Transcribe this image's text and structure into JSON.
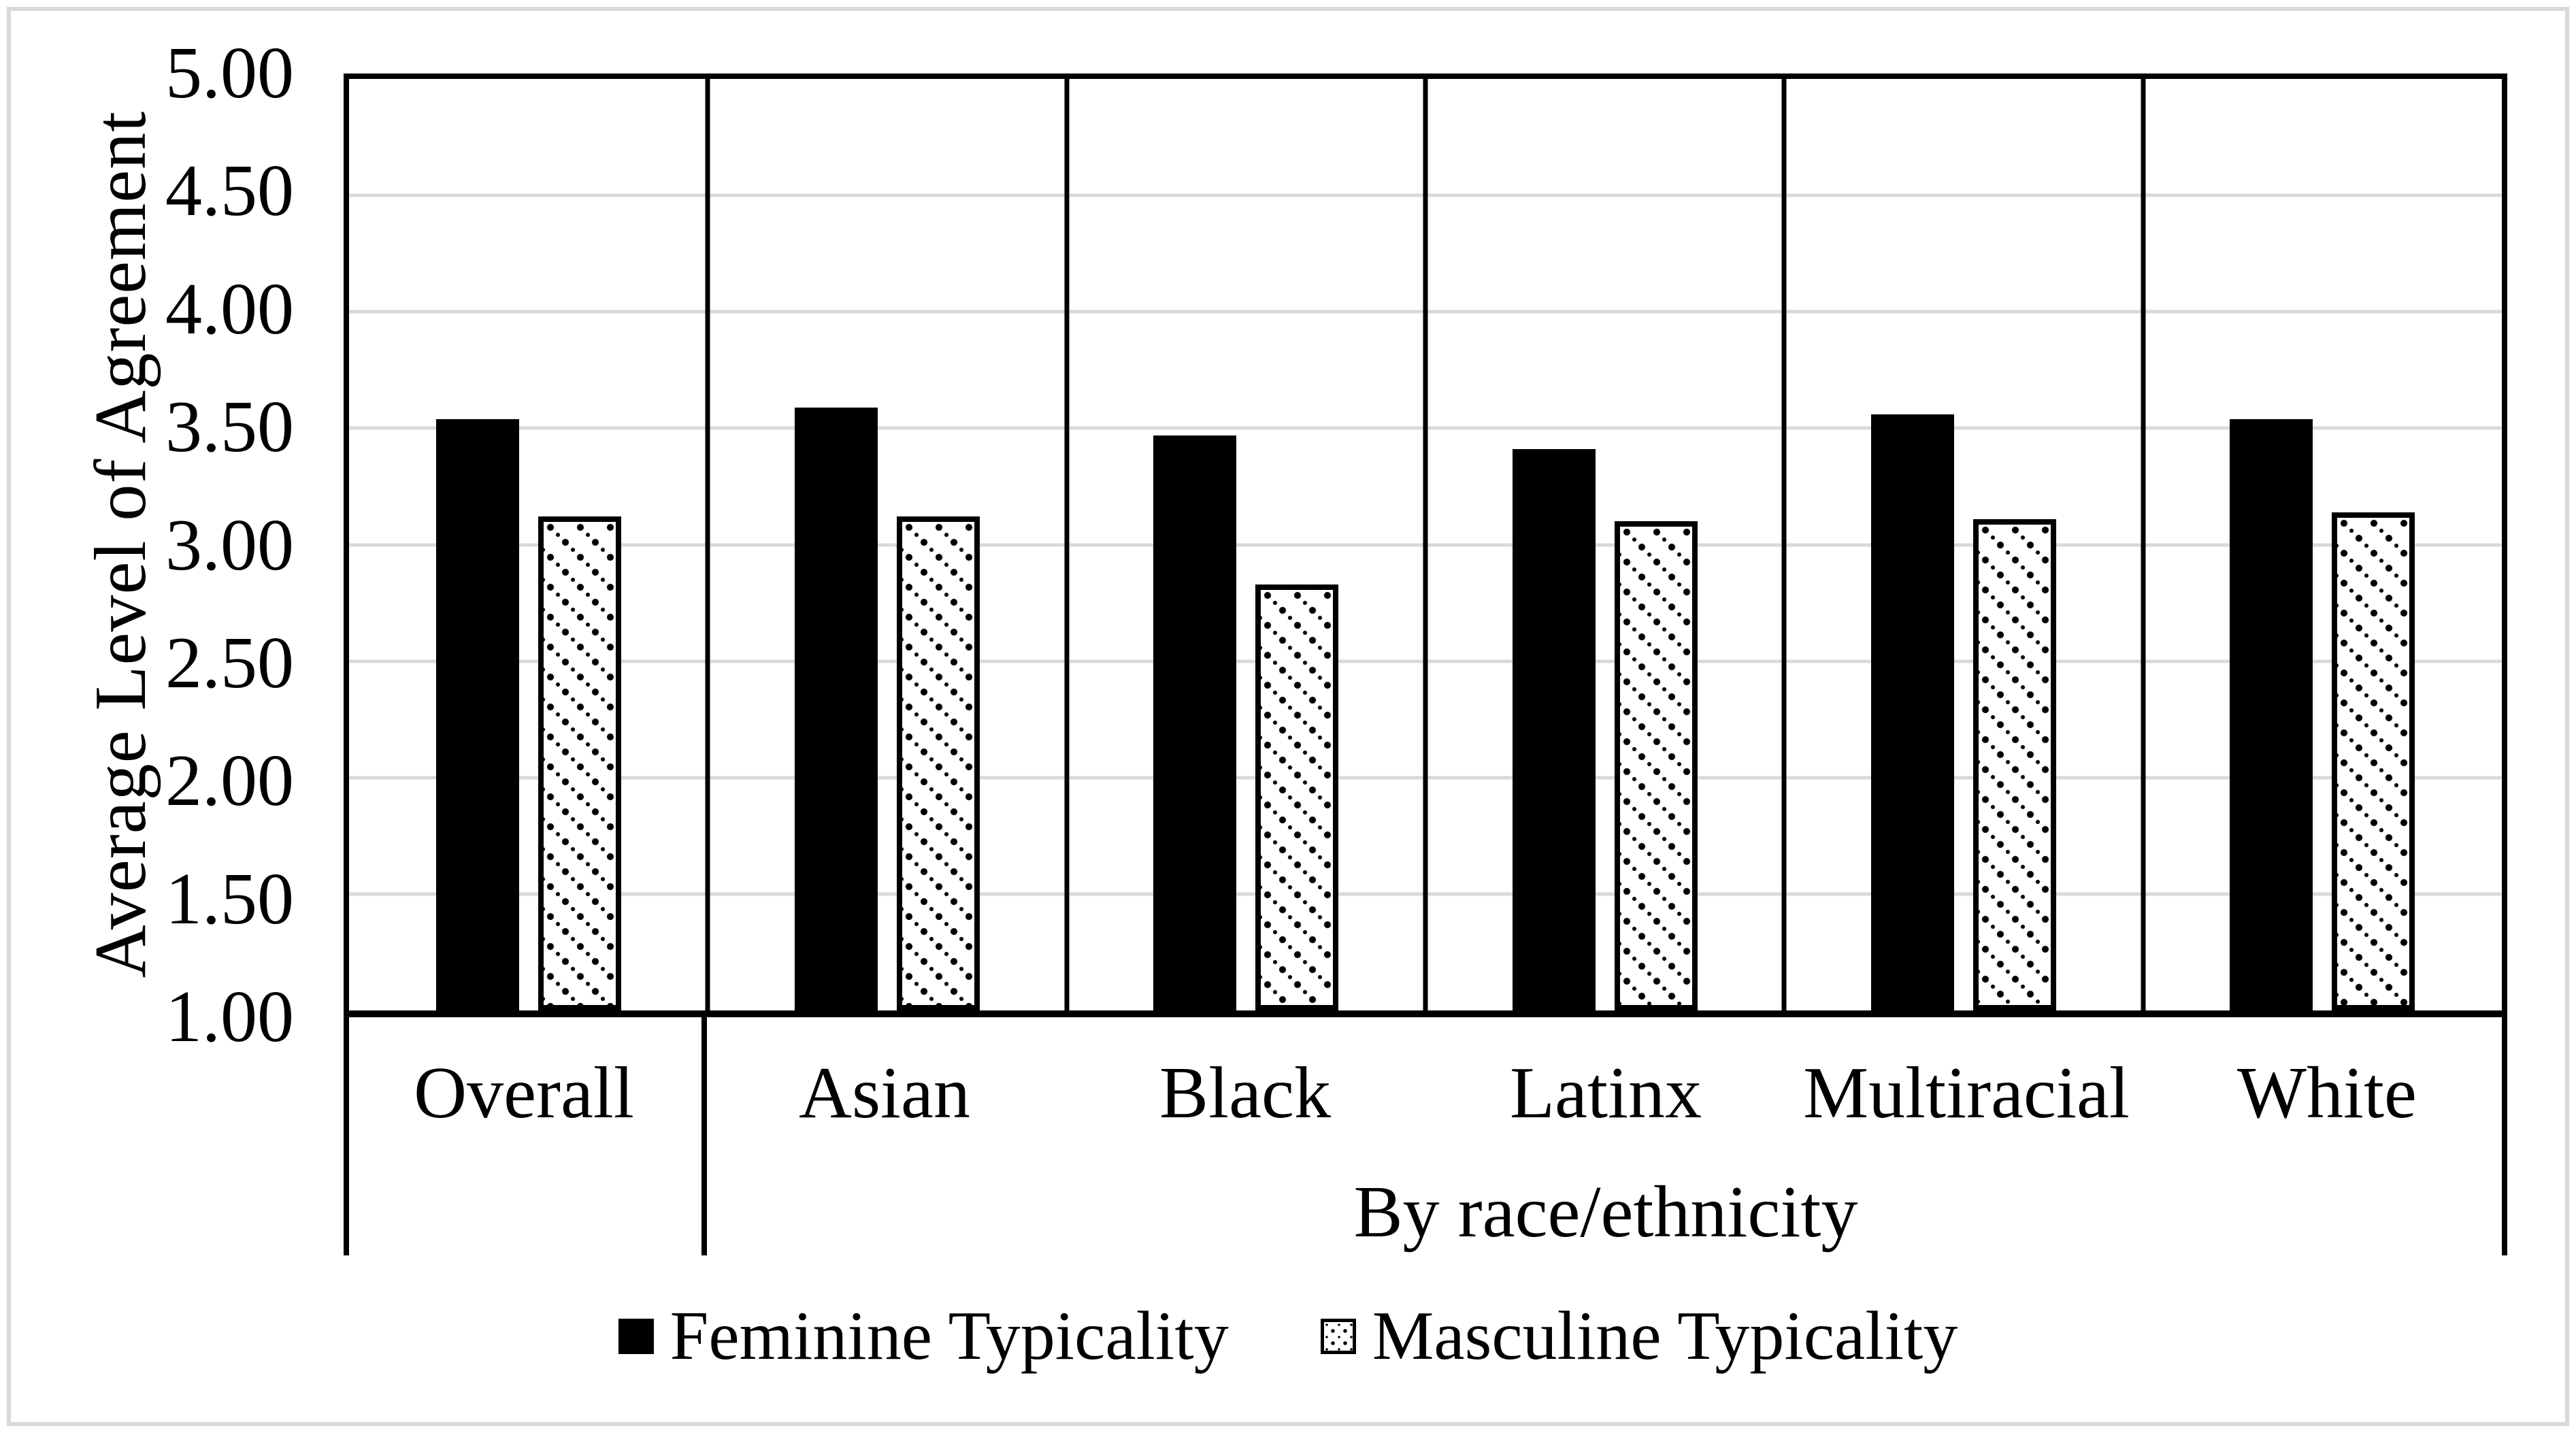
{
  "frame": {
    "border_color": "#d9d9d9"
  },
  "chart_data": {
    "type": "bar",
    "title": "",
    "ylabel": "Average Level of Agreement",
    "xlabel": "By race/ethnicity",
    "xlabel_note": "secondary category label spanning Asian through White",
    "categories": [
      "Overall",
      "Asian",
      "Black",
      "Latinx",
      "Multiracial",
      "White"
    ],
    "series": [
      {
        "name": "Feminine Typicality",
        "fill": "solid-black",
        "values": [
          3.54,
          3.59,
          3.47,
          3.41,
          3.56,
          3.54
        ]
      },
      {
        "name": "Masculine Typicality",
        "fill": "dotted-pattern",
        "values": [
          3.12,
          3.12,
          2.83,
          3.1,
          3.11,
          3.14
        ]
      }
    ],
    "ylim": [
      1.0,
      5.0
    ],
    "ytick_step": 0.5,
    "yticks": [
      {
        "label": "5.00",
        "value": 5.0
      },
      {
        "label": "4.50",
        "value": 4.5
      },
      {
        "label": "4.00",
        "value": 4.0
      },
      {
        "label": "3.50",
        "value": 3.5
      },
      {
        "label": "3.00",
        "value": 3.0
      },
      {
        "label": "2.50",
        "value": 2.5
      },
      {
        "label": "2.00",
        "value": 2.0
      },
      {
        "label": "1.50",
        "value": 1.5
      },
      {
        "label": "1.00",
        "value": 1.0
      }
    ],
    "grid": true,
    "gridline_color": "#d9d9d9",
    "bar_color": "#000000",
    "background_color": "#ffffff",
    "legend_position": "bottom",
    "category_separators": true
  },
  "legend": {
    "items": [
      {
        "label": "Feminine Typicality",
        "marker": "solid-black-square"
      },
      {
        "label": "Masculine Typicality",
        "marker": "dotted-square"
      }
    ]
  }
}
